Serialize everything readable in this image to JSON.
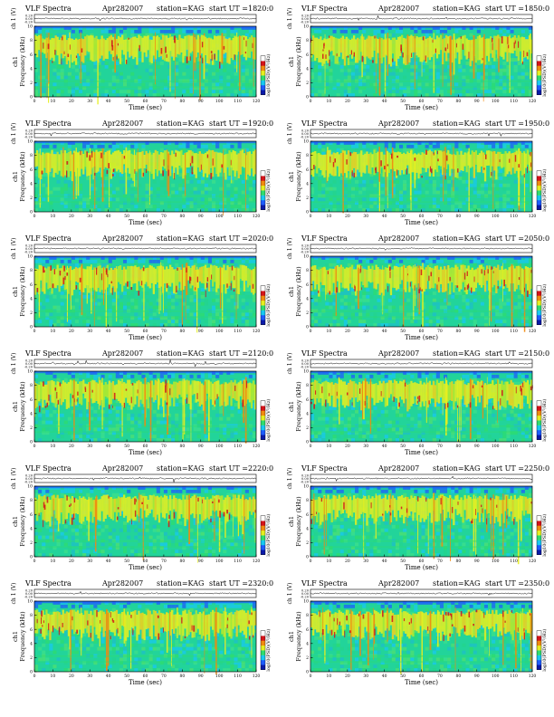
{
  "colors": {
    "colorbar": [
      "#0a1aa8",
      "#1e5cff",
      "#18c8f0",
      "#2fdc6e",
      "#e6ee20",
      "#f08a10",
      "#d4141a",
      "#ffffff"
    ],
    "background": "#22d49a"
  },
  "common": {
    "header_left": "VLF Spectra",
    "date": "Apr282007",
    "station": "station=KAG",
    "ylabel_top": "ch 1 (V)",
    "ylabel_freq_ch": "ch1",
    "ylabel_freq": "Frequency (kHz)",
    "xlabel": "Time (sec)",
    "colorbar_label": "log10(PSD)(V²/Hz)"
  },
  "chart_data": [
    {
      "type": "heatmap",
      "header": "start  UT =1820:0",
      "xlim": [
        0,
        120
      ],
      "ylim": [
        0,
        10
      ],
      "xticks": [
        "0",
        "10",
        "20",
        "30",
        "40",
        "50",
        "60",
        "70",
        "80",
        "90",
        "100",
        "110",
        "120"
      ],
      "yticks": [
        "0",
        "2",
        "4",
        "6",
        "8",
        "10"
      ],
      "top_ticks": [
        "0.20",
        "0.00",
        "-0.20"
      ]
    },
    {
      "type": "heatmap",
      "header": "start  UT =1850:0",
      "xlim": [
        0,
        120
      ],
      "ylim": [
        0,
        10
      ],
      "xticks": [
        "0",
        "10",
        "20",
        "30",
        "40",
        "50",
        "60",
        "70",
        "80",
        "90",
        "100",
        "110",
        "120"
      ],
      "yticks": [
        "0",
        "2",
        "4",
        "6",
        "8",
        "10"
      ],
      "top_ticks": [
        "0.20",
        "0.00",
        "-0.20"
      ]
    },
    {
      "type": "heatmap",
      "header": "start  UT =1920:0",
      "xlim": [
        0,
        120
      ],
      "ylim": [
        0,
        10
      ],
      "xticks": [
        "0",
        "10",
        "20",
        "30",
        "40",
        "50",
        "60",
        "70",
        "80",
        "90",
        "100",
        "110",
        "120"
      ],
      "yticks": [
        "0",
        "2",
        "4",
        "6",
        "8",
        "10"
      ],
      "top_ticks": [
        "0.20",
        "0.00",
        "-0.20"
      ]
    },
    {
      "type": "heatmap",
      "header": "start  UT =1950:0",
      "xlim": [
        0,
        120
      ],
      "ylim": [
        0,
        10
      ],
      "xticks": [
        "0",
        "10",
        "20",
        "30",
        "40",
        "50",
        "60",
        "70",
        "80",
        "90",
        "100",
        "110",
        "120"
      ],
      "yticks": [
        "0",
        "2",
        "4",
        "6",
        "8",
        "10"
      ],
      "top_ticks": [
        "0.20",
        "0.00",
        "-0.20"
      ]
    },
    {
      "type": "heatmap",
      "header": "start  UT =2020:0",
      "xlim": [
        0,
        120
      ],
      "ylim": [
        0,
        10
      ],
      "xticks": [
        "0",
        "10",
        "20",
        "30",
        "40",
        "50",
        "60",
        "70",
        "80",
        "90",
        "100",
        "110",
        "120"
      ],
      "yticks": [
        "0",
        "2",
        "4",
        "6",
        "8",
        "10"
      ],
      "top_ticks": [
        "0.20",
        "0.00",
        "-0.20"
      ]
    },
    {
      "type": "heatmap",
      "header": "start  UT =2050:0",
      "xlim": [
        0,
        120
      ],
      "ylim": [
        0,
        10
      ],
      "xticks": [
        "0",
        "10",
        "20",
        "30",
        "40",
        "50",
        "60",
        "70",
        "80",
        "90",
        "100",
        "110",
        "120"
      ],
      "yticks": [
        "0",
        "2",
        "4",
        "6",
        "8",
        "10"
      ],
      "top_ticks": [
        "0.20",
        "0.00",
        "-0.20"
      ]
    },
    {
      "type": "heatmap",
      "header": "start  UT =2120:0",
      "xlim": [
        0,
        120
      ],
      "ylim": [
        0,
        10
      ],
      "xticks": [
        "0",
        "10",
        "20",
        "30",
        "40",
        "50",
        "60",
        "70",
        "80",
        "90",
        "100",
        "110",
        "120"
      ],
      "yticks": [
        "0",
        "2",
        "4",
        "6",
        "8",
        "10"
      ],
      "top_ticks": [
        "0.20",
        "0.00",
        "-0.20"
      ]
    },
    {
      "type": "heatmap",
      "header": "start  UT =2150:0",
      "xlim": [
        0,
        120
      ],
      "ylim": [
        0,
        10
      ],
      "xticks": [
        "0",
        "10",
        "20",
        "30",
        "40",
        "50",
        "60",
        "70",
        "80",
        "90",
        "100",
        "110",
        "120"
      ],
      "yticks": [
        "0",
        "2",
        "4",
        "6",
        "8",
        "10"
      ],
      "top_ticks": [
        "0.20",
        "0.00",
        "-0.20"
      ]
    },
    {
      "type": "heatmap",
      "header": "start  UT =2220:0",
      "xlim": [
        0,
        120
      ],
      "ylim": [
        0,
        10
      ],
      "xticks": [
        "0",
        "10",
        "20",
        "30",
        "40",
        "50",
        "60",
        "70",
        "80",
        "90",
        "100",
        "110",
        "120"
      ],
      "yticks": [
        "0",
        "2",
        "4",
        "6",
        "8",
        "10"
      ],
      "top_ticks": [
        "0.20",
        "0.00",
        "-0.20"
      ]
    },
    {
      "type": "heatmap",
      "header": "start  UT =2250:0",
      "xlim": [
        0,
        120
      ],
      "ylim": [
        0,
        10
      ],
      "xticks": [
        "0",
        "10",
        "20",
        "30",
        "40",
        "50",
        "60",
        "70",
        "80",
        "90",
        "100",
        "110",
        "120"
      ],
      "yticks": [
        "0",
        "2",
        "4",
        "6",
        "8",
        "10"
      ],
      "top_ticks": [
        "0.20",
        "0.00",
        "-0.20"
      ]
    },
    {
      "type": "heatmap",
      "header": "start  UT =2320:0",
      "xlim": [
        0,
        120
      ],
      "ylim": [
        0,
        10
      ],
      "xticks": [
        "0",
        "10",
        "20",
        "30",
        "40",
        "50",
        "60",
        "70",
        "80",
        "90",
        "100",
        "110",
        "120"
      ],
      "yticks": [
        "0",
        "2",
        "4",
        "6",
        "8",
        "10"
      ],
      "top_ticks": [
        "0.20",
        "0.00",
        "-0.20"
      ]
    },
    {
      "type": "heatmap",
      "header": "start  UT =2350:0",
      "xlim": [
        0,
        120
      ],
      "ylim": [
        0,
        10
      ],
      "xticks": [
        "0",
        "10",
        "20",
        "30",
        "40",
        "50",
        "60",
        "70",
        "80",
        "90",
        "100",
        "110",
        "120"
      ],
      "yticks": [
        "0",
        "2",
        "4",
        "6",
        "8",
        "10"
      ],
      "top_ticks": [
        "0.20",
        "0.00",
        "-0.20"
      ]
    }
  ]
}
